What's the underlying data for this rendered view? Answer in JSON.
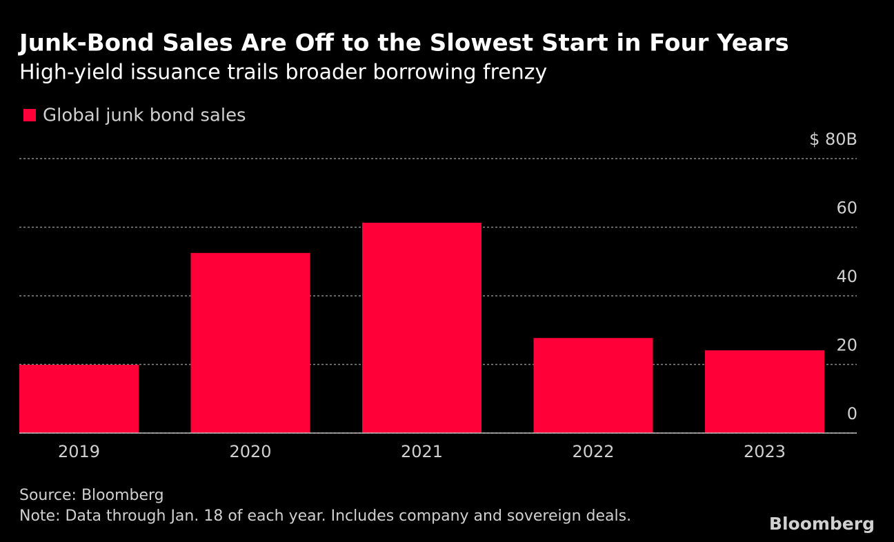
{
  "chart_data": {
    "type": "bar",
    "title": "Junk-Bond Sales Are Off to the Slowest Start in Four Years",
    "subtitle": "High-yield issuance trails broader borrowing frenzy",
    "categories": [
      "2019",
      "2020",
      "2021",
      "2022",
      "2023"
    ],
    "series": [
      {
        "name": "Global junk bond sales",
        "color": "#ff0039",
        "values": [
          19.9,
          52.5,
          61.3,
          27.7,
          24.1
        ]
      }
    ],
    "ylim": [
      0,
      80
    ],
    "yticks": [
      0,
      20,
      40,
      60,
      {
        "value": 80,
        "label": "$ 80B"
      }
    ],
    "grid": true,
    "source": "Source: Bloomberg",
    "note": "Note: Data through Jan. 18 of each year. Includes company and sovereign deals.",
    "branding": "Bloomberg"
  }
}
